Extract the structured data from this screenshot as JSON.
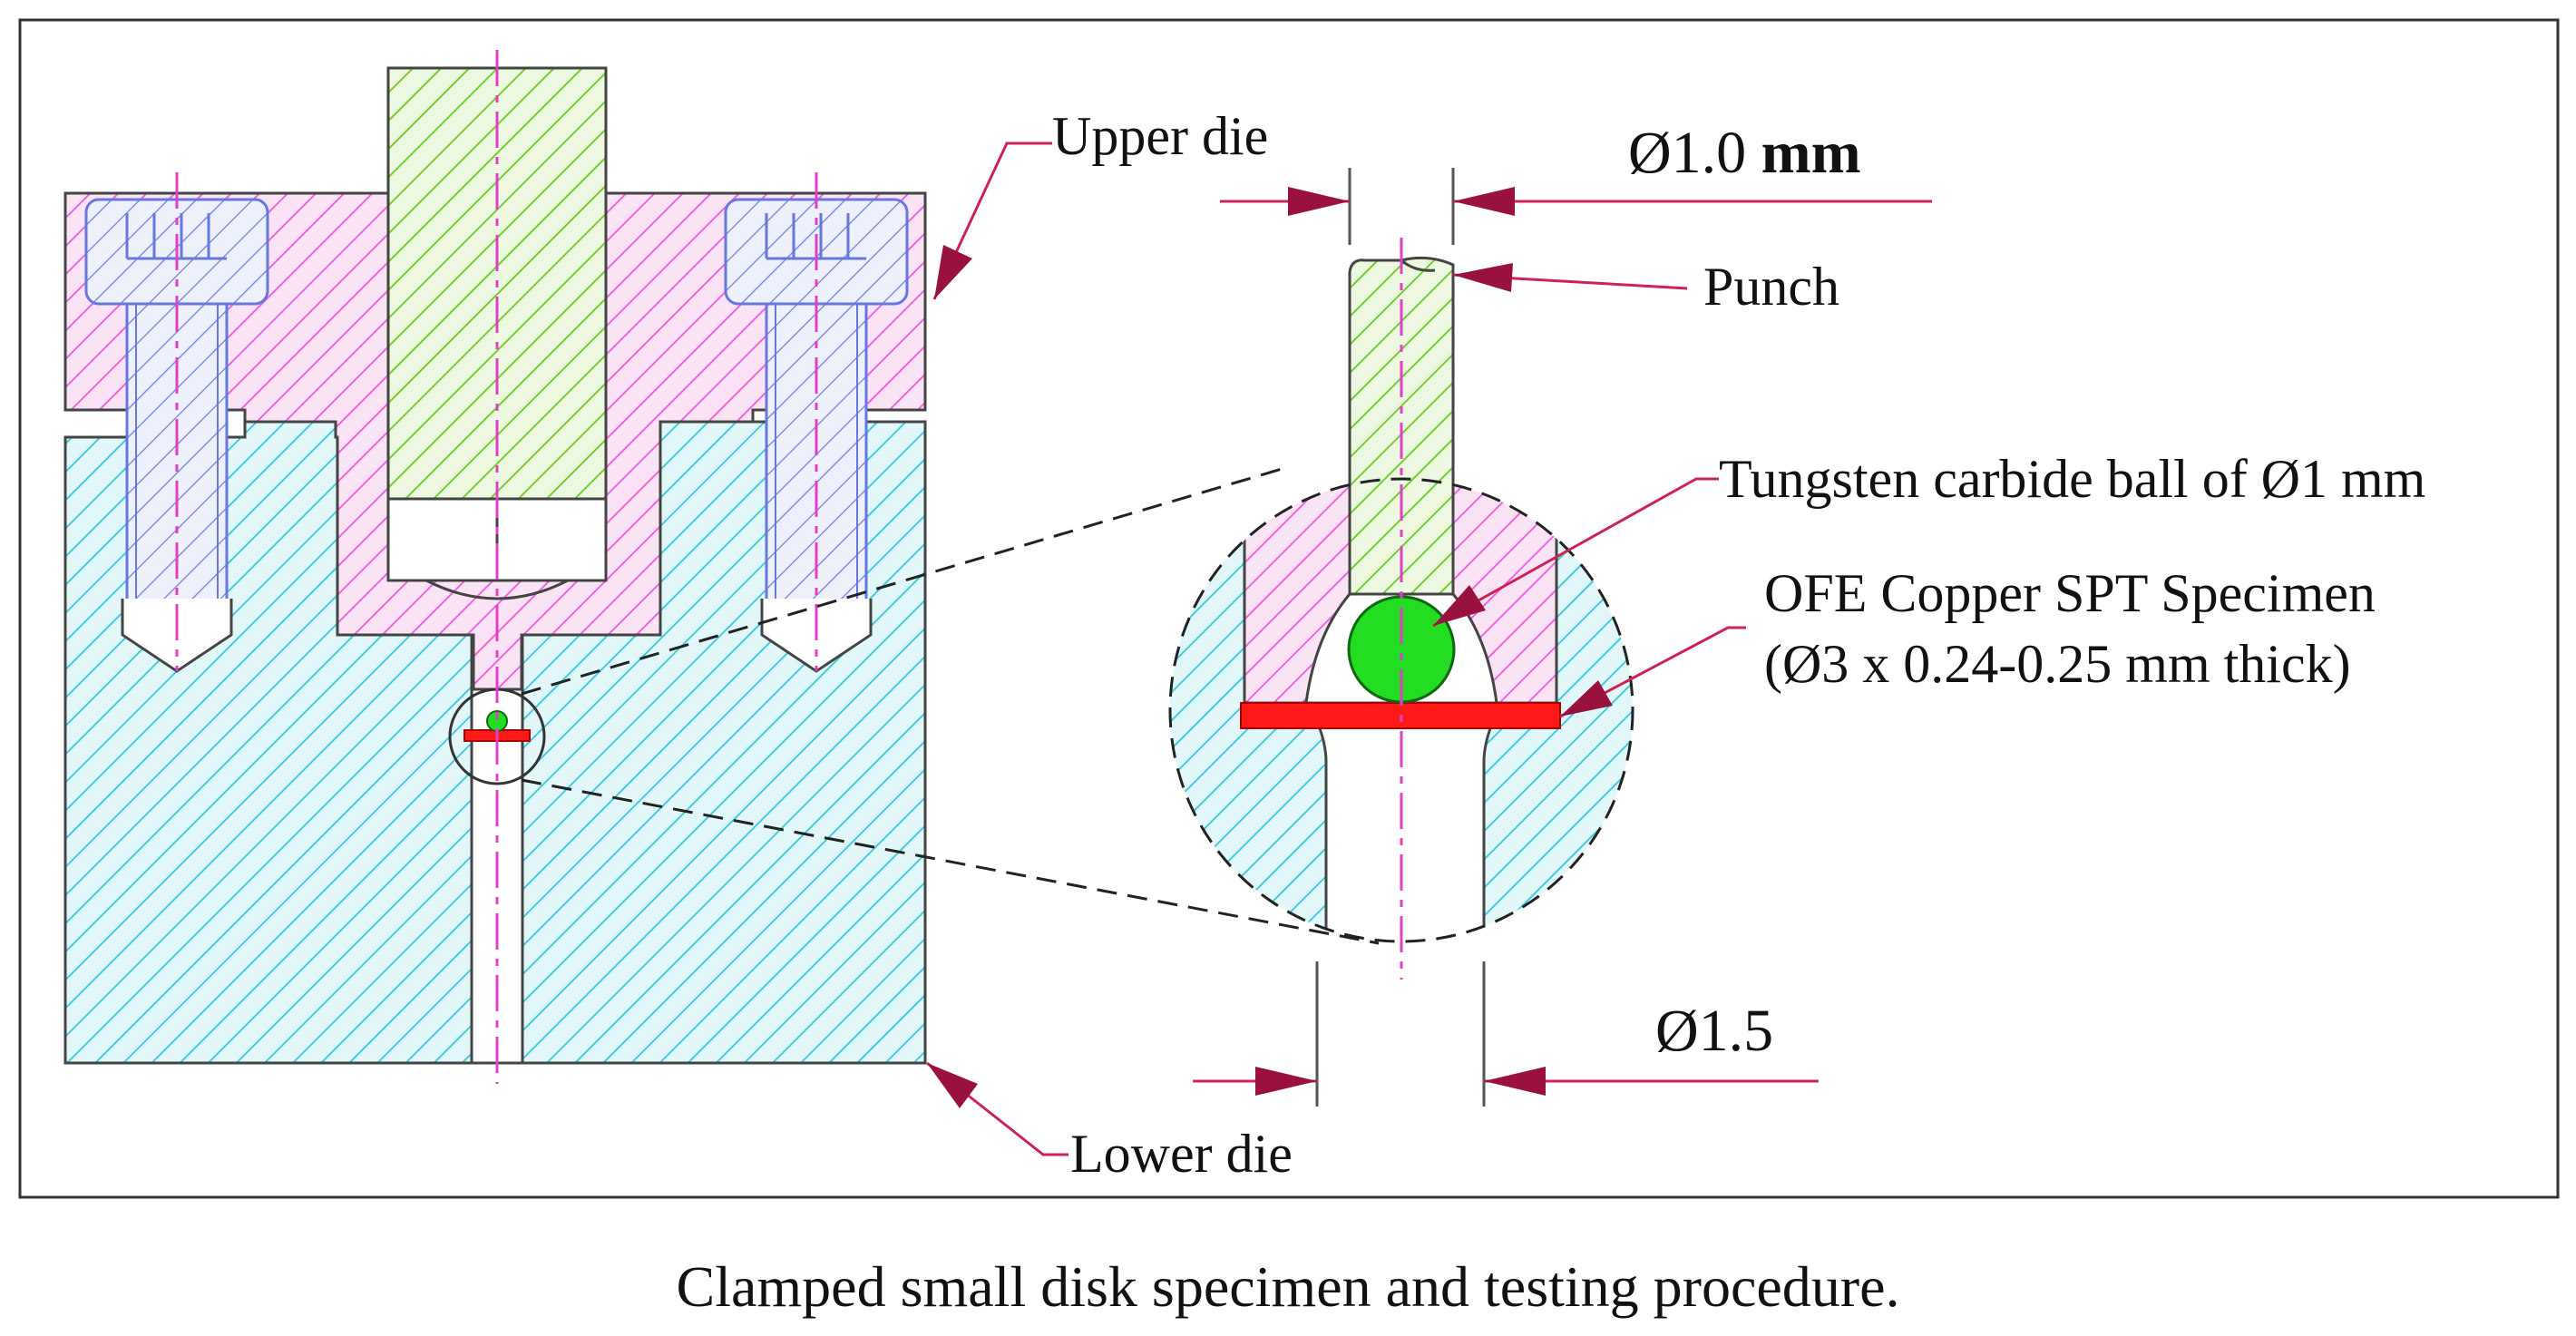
{
  "labels": {
    "upper_die": "Upper die",
    "lower_die": "Lower die",
    "punch": "Punch",
    "ball": "Tungsten carbide ball of Ø1 mm",
    "specimen_line1": "OFE Copper SPT Specimen",
    "specimen_line2": "(Ø3 x 0.24-0.25 mm thick)"
  },
  "dimensions": {
    "top_value": "Ø1.0",
    "top_unit": "mm",
    "bottom": "Ø1.5"
  },
  "caption": "Clamped small disk specimen and testing procedure.",
  "colors": {
    "upper_die": "#ee66dd",
    "lower_die": "#44ccdd",
    "punch": "#77cc33",
    "bolt": "#6677dd",
    "ball": "#22dd22",
    "specimen": "#ff1a1a",
    "leader": "#cc2255",
    "arrow": "#99113f",
    "centerline": "#e040c8"
  }
}
